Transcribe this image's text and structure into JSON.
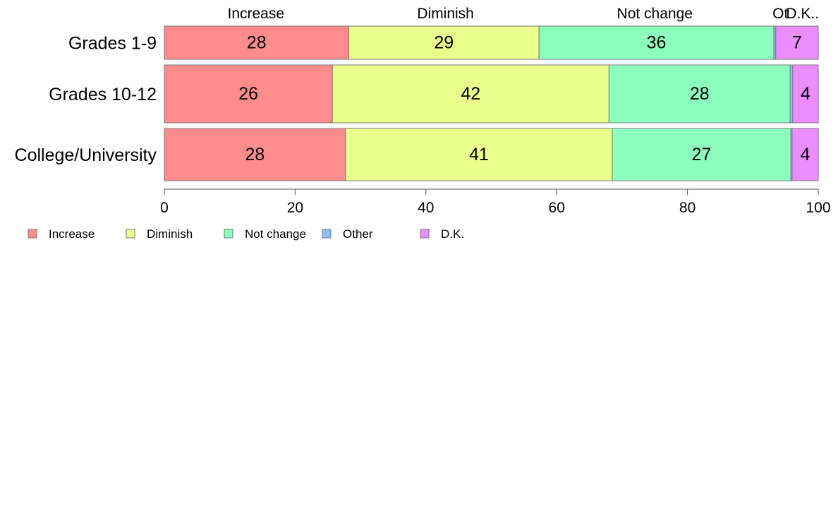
{
  "chart_data": {
    "type": "bar",
    "orientation": "horizontal",
    "stacked": true,
    "title": "",
    "xlabel": "",
    "ylabel": "",
    "xlim": [
      0,
      100
    ],
    "x_ticks": [
      0,
      20,
      40,
      60,
      80,
      100
    ],
    "grid": false,
    "legend_position": "bottom-left",
    "categories": [
      "Grades 1-9",
      "Grades 10-12",
      "College/University"
    ],
    "series": [
      {
        "name": "Increase",
        "color": "#ff8c8c",
        "values": [
          28.2,
          25.7,
          27.7
        ],
        "labels": [
          "28",
          "26",
          "28"
        ]
      },
      {
        "name": "Diminish",
        "color": "#ebff8c",
        "values": [
          29.1,
          42.3,
          40.8
        ],
        "labels": [
          "29",
          "42",
          "41"
        ]
      },
      {
        "name": "Not change",
        "color": "#8cffbe",
        "values": [
          35.9,
          27.7,
          27.3
        ],
        "labels": [
          "36",
          "28",
          "27"
        ]
      },
      {
        "name": "Other",
        "color": "#8cbeff",
        "values": [
          0.3,
          0.4,
          0.2
        ],
        "labels": [
          "",
          "",
          ""
        ]
      },
      {
        "name": "D.K.",
        "color": "#eb8cff",
        "values": [
          6.5,
          3.9,
          4.0
        ],
        "labels": [
          "7",
          "4",
          "4"
        ]
      }
    ],
    "top_labels": [
      {
        "text": "Increase",
        "x": 14
      },
      {
        "text": "Diminish",
        "x": 43
      },
      {
        "text": "Not change",
        "x": 75
      },
      {
        "text": "Ot",
        "x": 94.2
      },
      {
        "text": "D.K..",
        "x": 97.6
      }
    ]
  }
}
